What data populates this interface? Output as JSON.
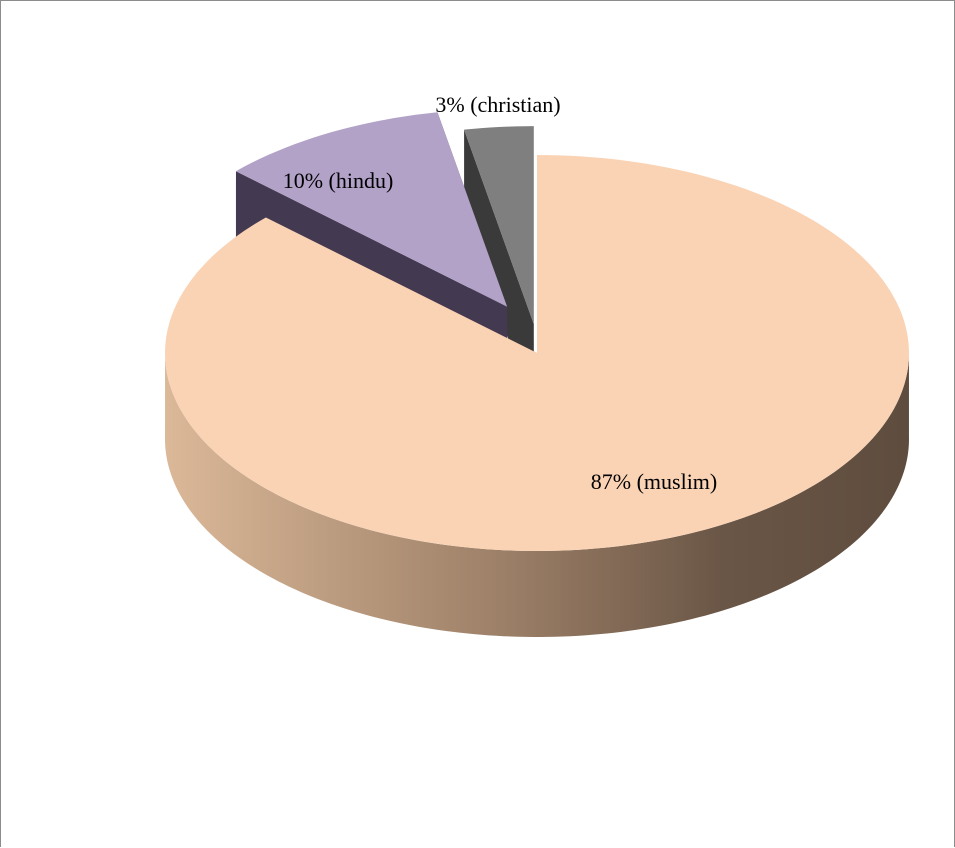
{
  "chart_data": {
    "type": "pie",
    "style": "3d-exploded",
    "title": "",
    "categories": [
      "muslim",
      "hindu",
      "christian"
    ],
    "values": [
      87,
      10,
      3
    ],
    "labels": [
      "87% (muslim)",
      "10% (hindu)",
      "3% (christian)"
    ],
    "colors": {
      "muslim": "#fad3b5",
      "hindu": "#b2a2c8",
      "christian": "#7f7f7f"
    },
    "side_colors": {
      "muslim": "#a58a72",
      "hindu": "#433a52",
      "christian": "#3a3a3a"
    },
    "exploded": [
      "hindu",
      "christian"
    ],
    "legend": "none",
    "grid": false
  }
}
